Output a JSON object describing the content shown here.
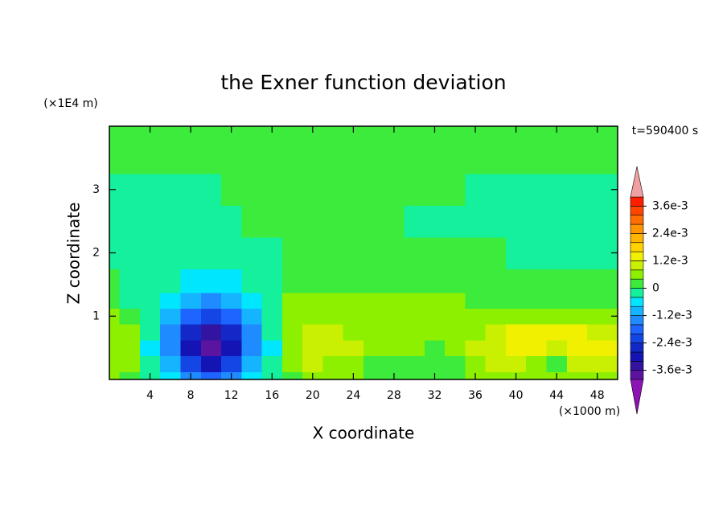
{
  "chart_data": {
    "type": "contour",
    "title": "the Exner function deviation",
    "xlabel": "X coordinate",
    "ylabel": "Z coordinate",
    "x_unit": "(×1000 m)",
    "y_unit": "(×1E4 m)",
    "annotation": "t=590400 s",
    "xlim": [
      0,
      50
    ],
    "ylim": [
      0,
      4
    ],
    "xticks": [
      4,
      8,
      12,
      16,
      20,
      24,
      28,
      32,
      36,
      40,
      44,
      48
    ],
    "yticks": [
      1,
      2,
      3
    ],
    "x": [
      0,
      2,
      4,
      6,
      8,
      10,
      12,
      14,
      16,
      18,
      20,
      22,
      24,
      26,
      28,
      30,
      32,
      34,
      36,
      38,
      40,
      42,
      44,
      46,
      48,
      50
    ],
    "y": [
      0,
      0.25,
      0.5,
      0.75,
      1,
      1.25,
      1.5,
      2,
      2.5,
      3,
      3.5,
      4
    ],
    "z": [
      [
        0.0006,
        0.0001,
        -0.0001,
        -0.0007,
        -0.0014,
        -0.0018,
        -0.0014,
        -0.0007,
        -0.0001,
        0.0001,
        0.0006,
        0.0006,
        0.0006,
        0.0002,
        0.0002,
        0.0002,
        0.0002,
        0.0002,
        0.0006,
        0.0006,
        0.0006,
        0.0006,
        0.0006,
        0.0006,
        0.0006,
        0.0006
      ],
      [
        0.0006,
        0.0005,
        -0.0003,
        -0.0012,
        -0.0024,
        -0.003,
        -0.0024,
        -0.0012,
        -0.0003,
        0.0005,
        0.001,
        0.0006,
        0.0006,
        0.0002,
        0.0002,
        0.0002,
        0.0002,
        0.0002,
        0.0006,
        0.001,
        0.001,
        0.0006,
        0.0002,
        0.001,
        0.001,
        0.001
      ],
      [
        0.0006,
        0.0004,
        -0.0005,
        -0.0016,
        -0.0031,
        -0.0038,
        -0.0031,
        -0.0016,
        -0.0005,
        0.0005,
        0.001,
        0.001,
        0.001,
        0.0006,
        0.0006,
        0.0006,
        0.0002,
        0.0006,
        0.001,
        0.001,
        0.0014,
        0.0014,
        0.001,
        0.0014,
        0.0014,
        0.0014
      ],
      [
        0.0006,
        0.0004,
        -0.0004,
        -0.0014,
        -0.0028,
        -0.0034,
        -0.0028,
        -0.0014,
        -0.0004,
        0.0006,
        0.001,
        0.001,
        0.0006,
        0.0006,
        0.0006,
        0.0006,
        0.0006,
        0.0006,
        0.0006,
        0.001,
        0.0014,
        0.0014,
        0.0014,
        0.0014,
        0.001,
        0.001
      ],
      [
        0.0006,
        0.0002,
        -0.0003,
        -0.001,
        -0.0019,
        -0.0023,
        -0.0019,
        -0.001,
        -0.0003,
        0.0006,
        0.0006,
        0.0006,
        0.0006,
        0.0006,
        0.0006,
        0.0006,
        0.0006,
        0.0006,
        0.0006,
        0.0006,
        0.0006,
        0.0006,
        0.0006,
        0.0006,
        0.0006,
        0.0006
      ],
      [
        0.0002,
        -0.0001,
        -0.0003,
        -0.0007,
        -0.0011,
        -0.0013,
        -0.0011,
        -0.0007,
        -0.0003,
        0.0006,
        0.0006,
        0.0006,
        0.0006,
        0.0006,
        0.0006,
        0.0006,
        0.0006,
        0.0006,
        0.0002,
        0.0002,
        0.0002,
        0.0002,
        0.0002,
        0.0002,
        0.0002,
        0.0002
      ],
      [
        0.0002,
        -0.0002,
        -0.0003,
        -0.0004,
        -0.0006,
        -0.0007,
        -0.0006,
        -0.0004,
        -0.0002,
        0.0002,
        0.0002,
        0.0002,
        0.0002,
        0.0002,
        0.0002,
        0.0002,
        0.0002,
        0.0002,
        0.0002,
        0.0002,
        0.0002,
        0.0002,
        0.0002,
        0.0002,
        0.0002,
        0.0002
      ],
      [
        -0.0002,
        -0.0002,
        -0.0002,
        -0.0002,
        -0.0002,
        -0.0002,
        -0.0002,
        -0.0002,
        -0.0002,
        0.0002,
        0.0002,
        0.0002,
        0.0002,
        0.0002,
        0.0002,
        0.0002,
        0.0002,
        0.0002,
        0.0002,
        0.0002,
        -0.0002,
        -0.0002,
        -0.0002,
        -0.0002,
        -0.0002,
        -0.0002
      ],
      [
        -0.0002,
        -0.0002,
        -0.0002,
        -0.0002,
        -0.0002,
        -0.0002,
        -0.0002,
        0.0002,
        0.0002,
        0.0002,
        0.0002,
        0.0002,
        0.0002,
        0.0002,
        0.0002,
        -0.0002,
        -0.0002,
        -0.0002,
        -0.0002,
        -0.0002,
        -0.0002,
        -0.0002,
        -0.0002,
        -0.0002,
        -0.0002,
        -0.0002
      ],
      [
        -0.0002,
        -0.0002,
        -0.0002,
        -0.0002,
        -0.0002,
        -0.0002,
        0.0002,
        0.0002,
        0.0002,
        0.0002,
        0.0002,
        0.0002,
        0.0002,
        0.0002,
        0.0002,
        0.0002,
        0.0002,
        0.0002,
        -0.0002,
        -0.0002,
        -0.0002,
        -0.0002,
        -0.0002,
        -0.0002,
        -0.0002,
        -0.0002
      ],
      [
        0.0002,
        0.0002,
        0.0002,
        0.0002,
        0.0002,
        0.0002,
        0.0002,
        0.0002,
        0.0002,
        0.0002,
        0.0002,
        0.0002,
        0.0002,
        0.0002,
        0.0002,
        0.0002,
        0.0002,
        0.0002,
        0.0002,
        0.0002,
        0.0002,
        0.0002,
        0.0002,
        0.0002,
        0.0002,
        0.0002
      ],
      [
        0.0002,
        0.0002,
        0.0002,
        0.0002,
        0.0002,
        0.0002,
        0.0002,
        0.0002,
        0.0002,
        0.0002,
        0.0002,
        0.0002,
        0.0002,
        0.0002,
        0.0002,
        0.0002,
        0.0002,
        0.0002,
        0.0002,
        0.0002,
        0.0002,
        0.0002,
        0.0002,
        0.0002,
        0.0002,
        0.0002
      ]
    ],
    "levels": [
      -0.004,
      -0.0036,
      -0.0032,
      -0.0028,
      -0.0024,
      -0.002,
      -0.0016,
      -0.0012,
      -0.0008,
      -0.0004,
      0,
      0.0004,
      0.0008,
      0.0012,
      0.0016,
      0.002,
      0.0024,
      0.0028,
      0.0032,
      0.0036,
      0.004
    ],
    "colors": [
      "#5a14a0",
      "#3214a0",
      "#1414b4",
      "#1428c8",
      "#1446e6",
      "#1e64ff",
      "#1e8cff",
      "#14b4ff",
      "#00e6ff",
      "#14f09c",
      "#3ceb3c",
      "#8cf000",
      "#c8f000",
      "#f0f000",
      "#ffd200",
      "#ffb400",
      "#ff9600",
      "#ff6e00",
      "#ff4600",
      "#ff1e00"
    ],
    "under_color": "#8c14b4",
    "over_color": "#f0a0a0",
    "cbticks": [
      {
        "value": 0.0036,
        "label": "3.6e-3"
      },
      {
        "value": 0.0024,
        "label": "2.4e-3"
      },
      {
        "value": 0.0012,
        "label": "1.2e-3"
      },
      0,
      {
        "value": -0.0012,
        "label": "-1.2e-3"
      },
      {
        "value": -0.0024,
        "label": "-2.4e-3"
      },
      {
        "value": -0.0036,
        "label": "-3.6e-3"
      }
    ]
  }
}
